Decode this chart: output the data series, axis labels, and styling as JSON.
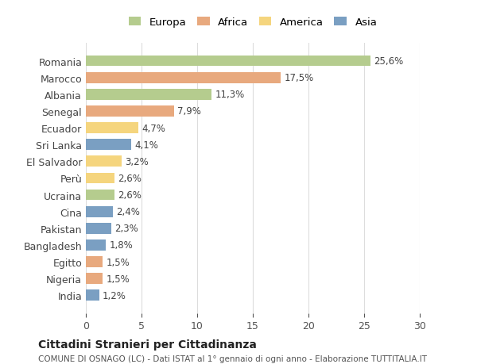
{
  "countries": [
    "Romania",
    "Marocco",
    "Albania",
    "Senegal",
    "Ecuador",
    "Sri Lanka",
    "El Salvador",
    "Perù",
    "Ucraina",
    "Cina",
    "Pakistan",
    "Bangladesh",
    "Egitto",
    "Nigeria",
    "India"
  ],
  "values": [
    25.6,
    17.5,
    11.3,
    7.9,
    4.7,
    4.1,
    3.2,
    2.6,
    2.6,
    2.4,
    2.3,
    1.8,
    1.5,
    1.5,
    1.2
  ],
  "labels": [
    "25,6%",
    "17,5%",
    "11,3%",
    "7,9%",
    "4,7%",
    "4,1%",
    "3,2%",
    "2,6%",
    "2,6%",
    "2,4%",
    "2,3%",
    "1,8%",
    "1,5%",
    "1,5%",
    "1,2%"
  ],
  "continents": [
    "Europa",
    "Africa",
    "Europa",
    "Africa",
    "America",
    "Asia",
    "America",
    "America",
    "Europa",
    "Asia",
    "Asia",
    "Asia",
    "Africa",
    "Africa",
    "Asia"
  ],
  "continent_colors": {
    "Europa": "#b5cc8e",
    "Africa": "#e8a97e",
    "America": "#f5d57e",
    "Asia": "#7a9fc2"
  },
  "legend_order": [
    "Europa",
    "Africa",
    "America",
    "Asia"
  ],
  "title": "Cittadini Stranieri per Cittadinanza",
  "subtitle": "COMUNE DI OSNAGO (LC) - Dati ISTAT al 1° gennaio di ogni anno - Elaborazione TUTTITALIA.IT",
  "xlim": [
    0,
    30
  ],
  "xticks": [
    0,
    5,
    10,
    15,
    20,
    25,
    30
  ],
  "bg_color": "#ffffff",
  "bar_height": 0.65,
  "grid_color": "#dddddd"
}
